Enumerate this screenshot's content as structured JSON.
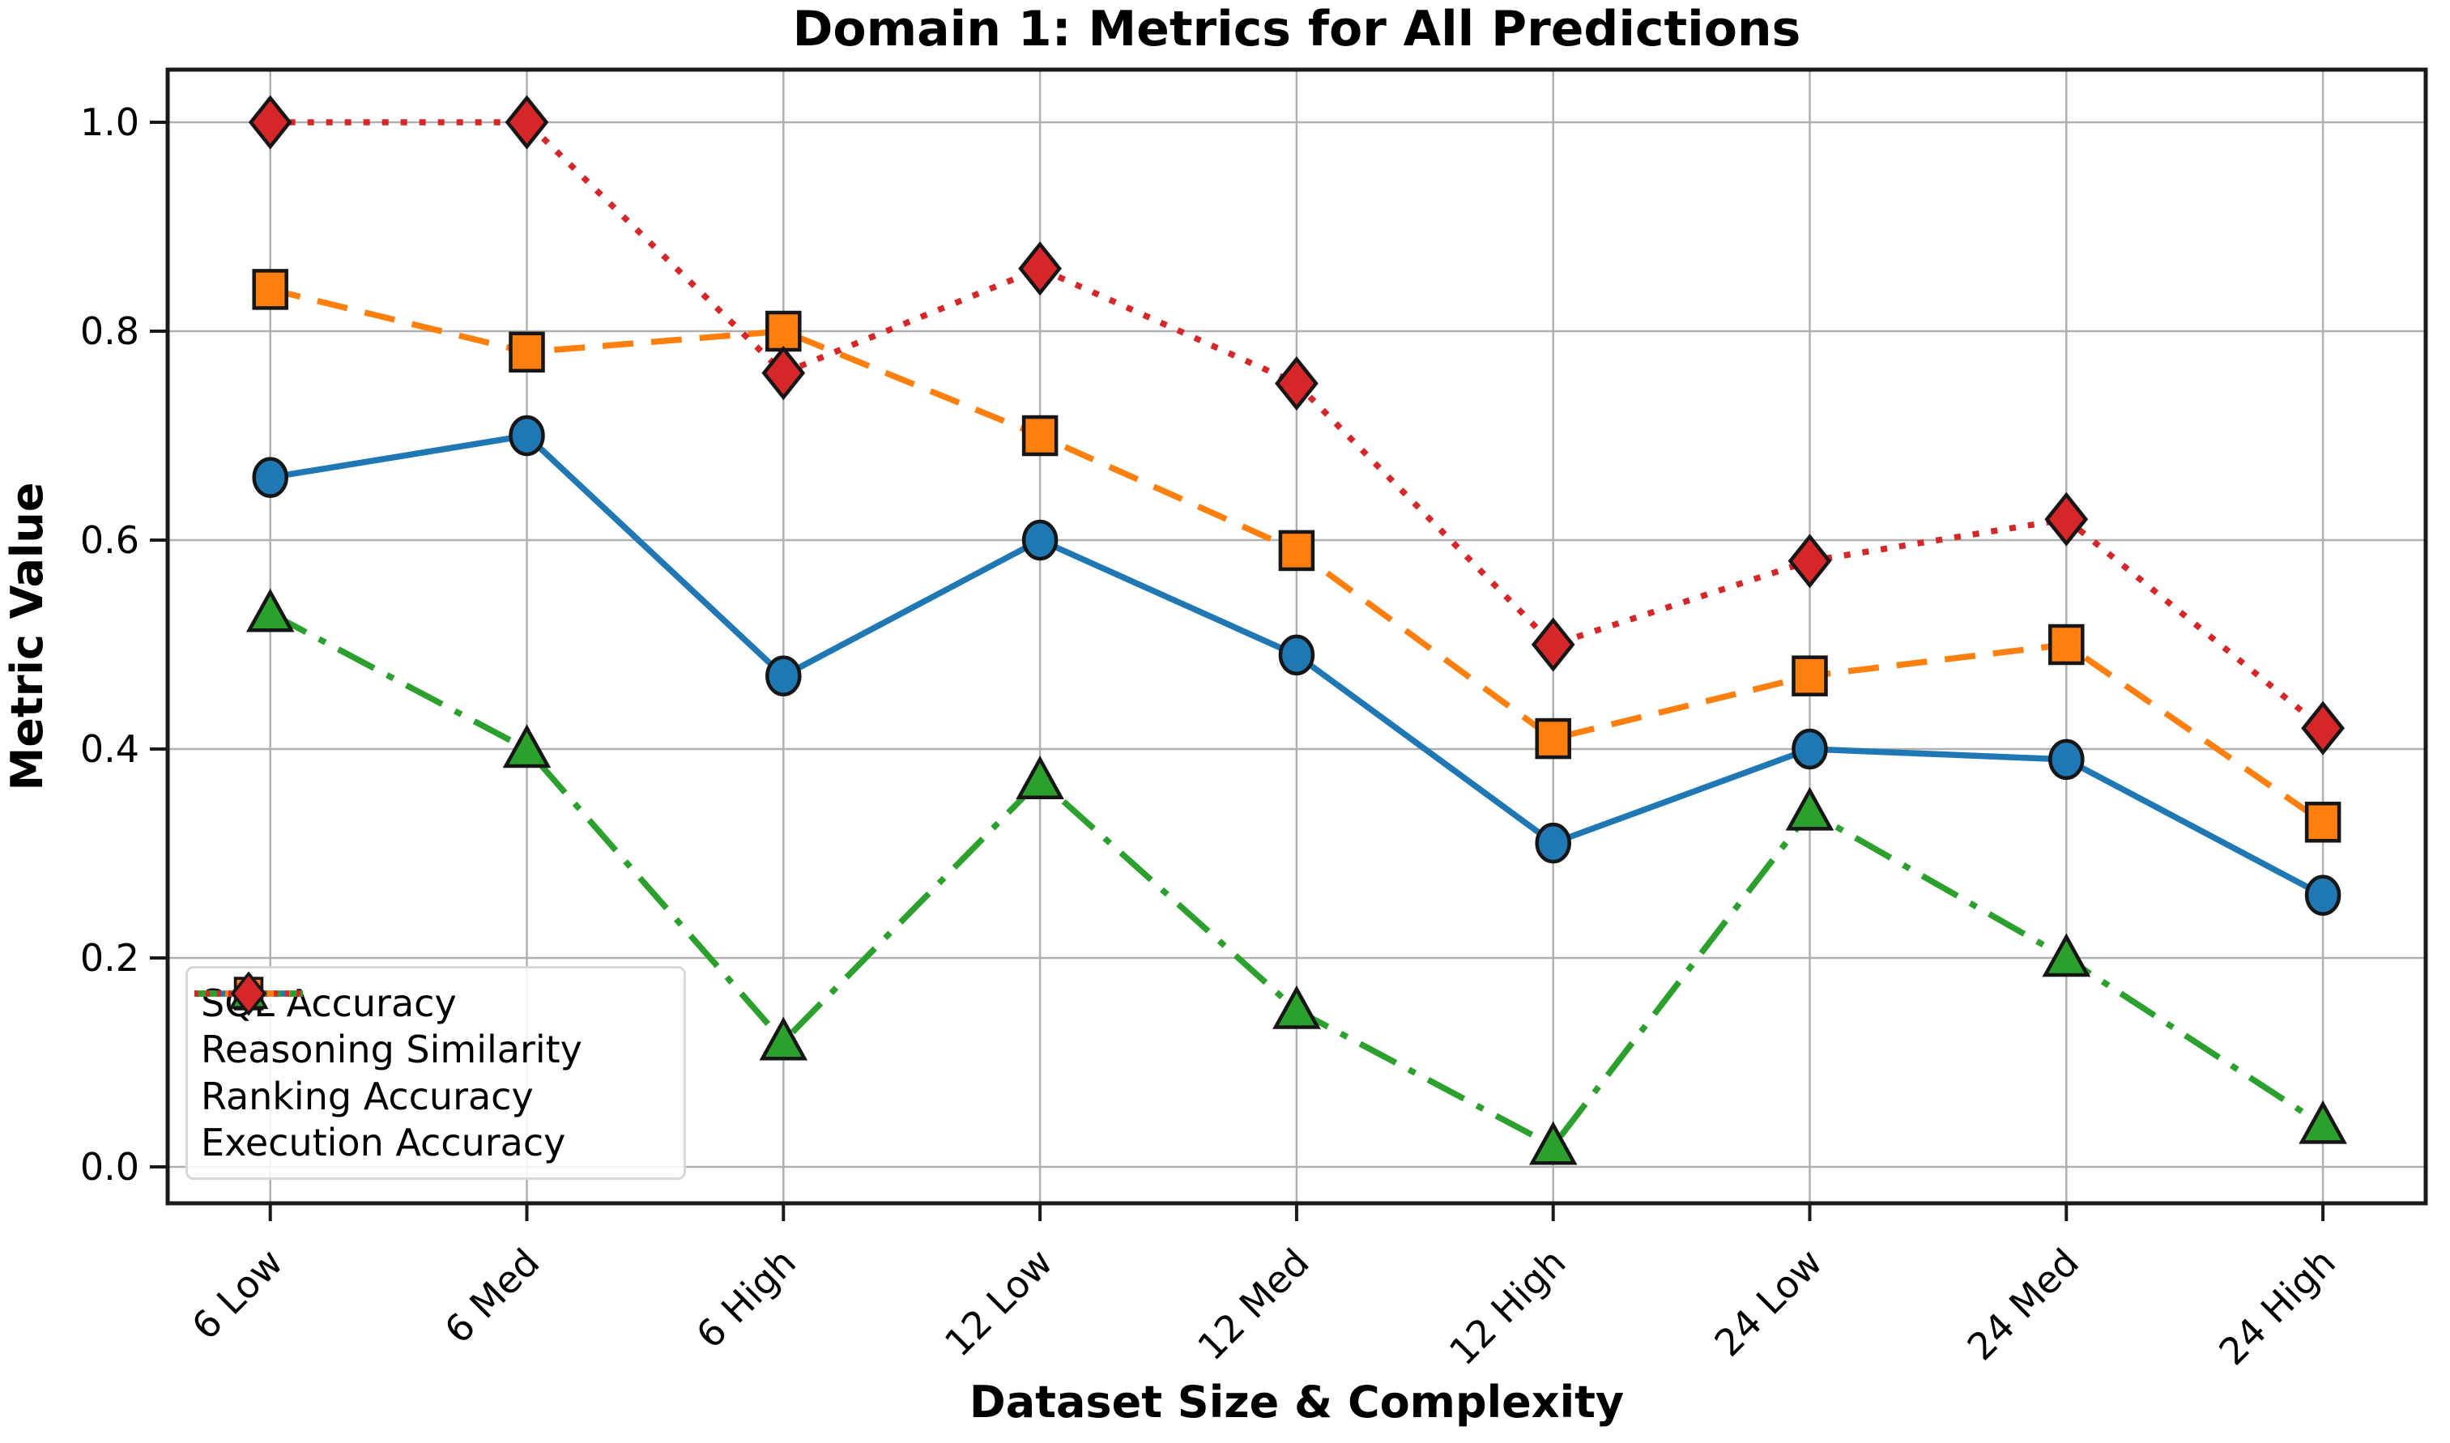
{
  "chart_data": {
    "type": "line",
    "title": "Domain 1: Metrics for All Predictions",
    "xlabel": "Dataset Size & Complexity",
    "ylabel": "Metric Value",
    "categories": [
      "6 Low",
      "6 Med",
      "6 High",
      "12 Low",
      "12 Med",
      "12 High",
      "24 Low",
      "24 Med",
      "24 High"
    ],
    "yticks": [
      0.0,
      0.2,
      0.4,
      0.6,
      0.8,
      1.0
    ],
    "ytick_labels": [
      "0.0",
      "0.2",
      "0.4",
      "0.6",
      "0.8",
      "1.0"
    ],
    "ylim": [
      -0.05,
      1.05
    ],
    "grid": true,
    "legend_position": "lower left",
    "series": [
      {
        "name": "SQL Accuracy",
        "color": "#1f77b4",
        "linestyle": "solid",
        "marker": "circle",
        "values": [
          0.66,
          0.7,
          0.47,
          0.6,
          0.49,
          0.31,
          0.4,
          0.39,
          0.26
        ]
      },
      {
        "name": "Reasoning Similarity",
        "color": "#ff7f0e",
        "linestyle": "dashed",
        "marker": "square",
        "values": [
          0.84,
          0.78,
          0.8,
          0.7,
          0.59,
          0.41,
          0.47,
          0.5,
          0.33
        ]
      },
      {
        "name": "Ranking Accuracy",
        "color": "#2ca02c",
        "linestyle": "dashdot",
        "marker": "triangle",
        "values": [
          0.53,
          0.4,
          0.12,
          0.37,
          0.15,
          0.02,
          0.34,
          0.2,
          0.04
        ]
      },
      {
        "name": "Execution Accuracy",
        "color": "#d62728",
        "linestyle": "dotted",
        "marker": "diamond",
        "values": [
          1.0,
          1.0,
          0.76,
          0.86,
          0.75,
          0.5,
          0.58,
          0.62,
          0.42
        ]
      }
    ]
  }
}
